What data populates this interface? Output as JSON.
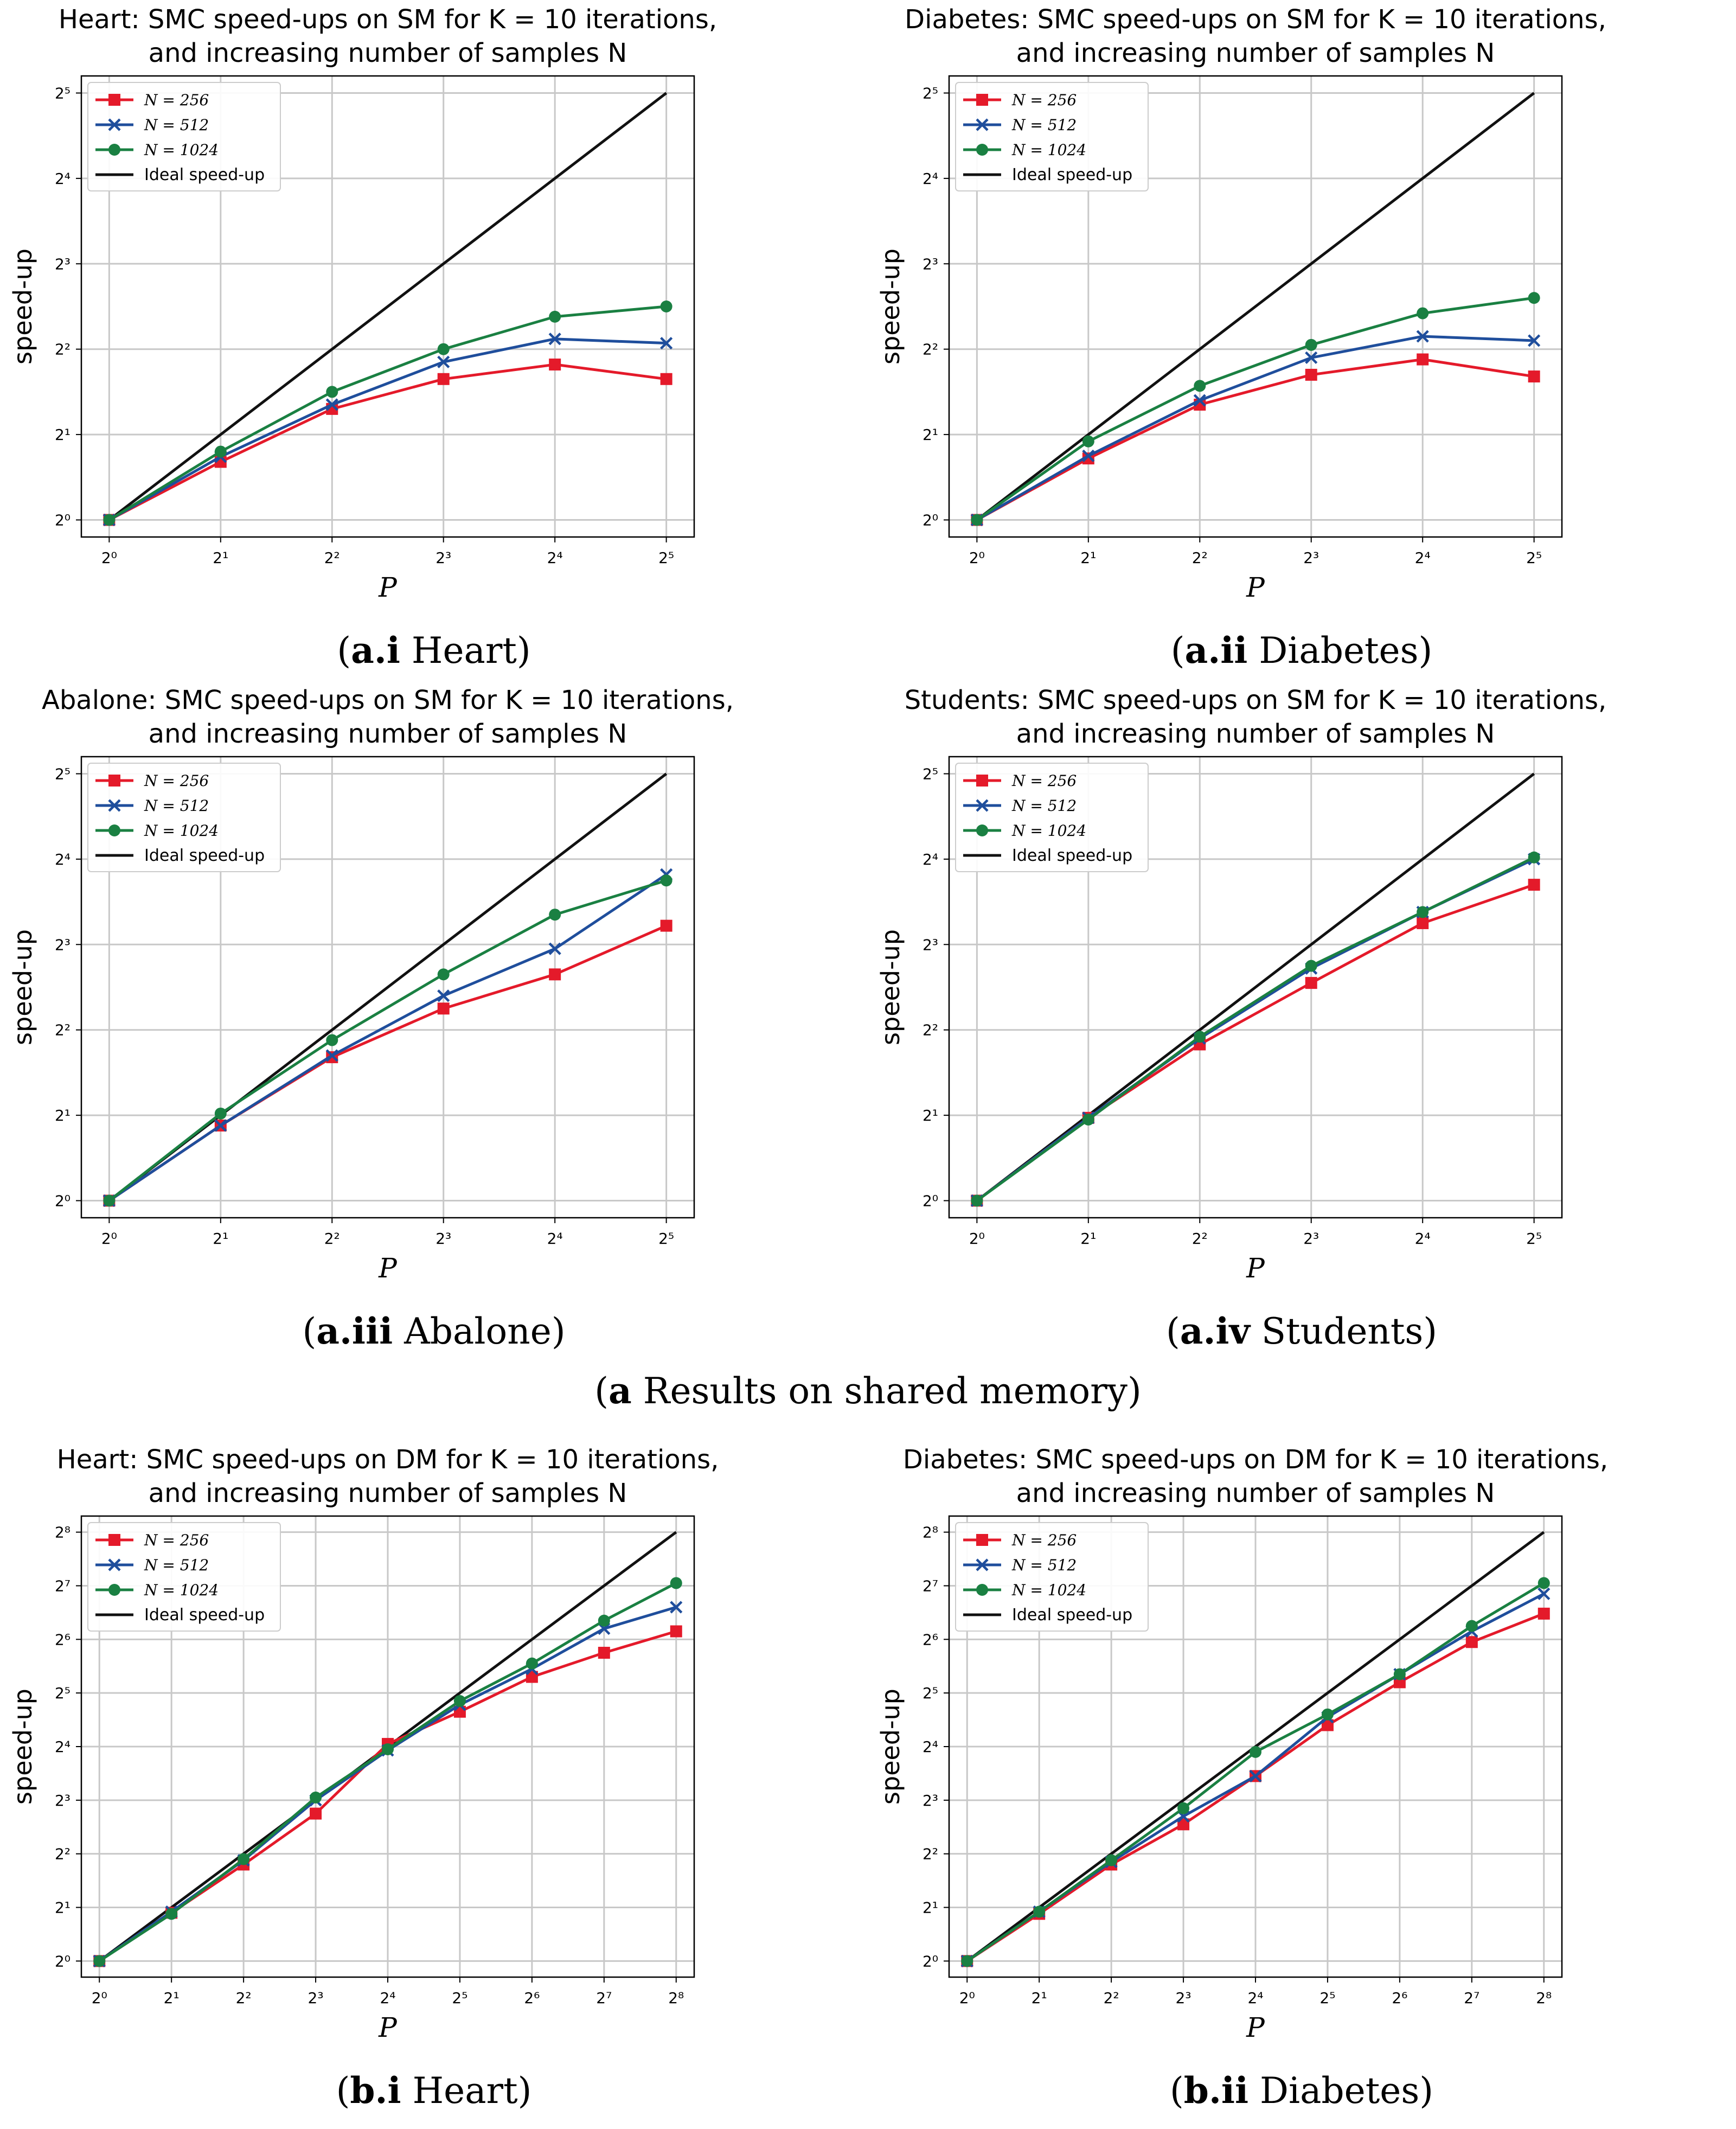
{
  "colors": {
    "n256": "#e41a2a",
    "n512": "#1f4e9c",
    "n1024": "#1a8042",
    "ideal": "#111111",
    "grid": "#c8c8c8"
  },
  "section_caption_a": {
    "label": "a",
    "text": " Results on shared memory"
  },
  "chart_data": [
    {
      "id": "ai",
      "type": "line",
      "title_line1": "Heart: SMC speed-ups on SM for K = 10 iterations,",
      "title_line2": "and increasing number of samples N",
      "xlabel": "P",
      "ylabel": "speed-up",
      "x_log2": [
        0,
        1,
        2,
        3,
        4,
        5
      ],
      "y_log2_range": [
        -0.2,
        5.2
      ],
      "x_tick_labels": [
        "2⁰",
        "2¹",
        "2²",
        "2³",
        "2⁴",
        "2⁵"
      ],
      "y_tick_labels": [
        "2⁰",
        "2¹",
        "2²",
        "2³",
        "2⁴",
        "2⁵"
      ],
      "legend": [
        "N = 256",
        "N = 512",
        "N = 1024",
        "Ideal speed-up"
      ],
      "series": [
        {
          "name": "N = 256",
          "marker": "square",
          "color": "n256",
          "y_log2": [
            0,
            0.68,
            1.3,
            1.65,
            1.82,
            1.65
          ]
        },
        {
          "name": "N = 512",
          "marker": "x",
          "color": "n512",
          "y_log2": [
            0,
            0.74,
            1.35,
            1.85,
            2.12,
            2.07
          ]
        },
        {
          "name": "N = 1024",
          "marker": "circle",
          "color": "n1024",
          "y_log2": [
            0,
            0.8,
            1.5,
            2.0,
            2.38,
            2.5
          ]
        },
        {
          "name": "Ideal speed-up",
          "marker": "none",
          "color": "ideal",
          "y_log2": [
            0,
            1,
            2,
            3,
            4,
            5
          ]
        }
      ],
      "caption_label": "a.i",
      "caption_text": " Heart"
    },
    {
      "id": "aii",
      "type": "line",
      "title_line1": "Diabetes: SMC speed-ups on SM for K = 10 iterations,",
      "title_line2": "and increasing number of samples N",
      "xlabel": "P",
      "ylabel": "speed-up",
      "x_log2": [
        0,
        1,
        2,
        3,
        4,
        5
      ],
      "y_log2_range": [
        -0.2,
        5.2
      ],
      "x_tick_labels": [
        "2⁰",
        "2¹",
        "2²",
        "2³",
        "2⁴",
        "2⁵"
      ],
      "y_tick_labels": [
        "2⁰",
        "2¹",
        "2²",
        "2³",
        "2⁴",
        "2⁵"
      ],
      "legend": [
        "N = 256",
        "N = 512",
        "N = 1024",
        "Ideal speed-up"
      ],
      "series": [
        {
          "name": "N = 256",
          "marker": "square",
          "color": "n256",
          "y_log2": [
            0,
            0.72,
            1.35,
            1.7,
            1.88,
            1.68
          ]
        },
        {
          "name": "N = 512",
          "marker": "x",
          "color": "n512",
          "y_log2": [
            0,
            0.75,
            1.4,
            1.9,
            2.15,
            2.1
          ]
        },
        {
          "name": "N = 1024",
          "marker": "circle",
          "color": "n1024",
          "y_log2": [
            0,
            0.92,
            1.57,
            2.05,
            2.42,
            2.6
          ]
        },
        {
          "name": "Ideal speed-up",
          "marker": "none",
          "color": "ideal",
          "y_log2": [
            0,
            1,
            2,
            3,
            4,
            5
          ]
        }
      ],
      "caption_label": "a.ii",
      "caption_text": " Diabetes"
    },
    {
      "id": "aiii",
      "type": "line",
      "title_line1": "Abalone: SMC speed-ups on SM for K = 10 iterations,",
      "title_line2": "and increasing number of samples N",
      "xlabel": "P",
      "ylabel": "speed-up",
      "x_log2": [
        0,
        1,
        2,
        3,
        4,
        5
      ],
      "y_log2_range": [
        -0.2,
        5.2
      ],
      "x_tick_labels": [
        "2⁰",
        "2¹",
        "2²",
        "2³",
        "2⁴",
        "2⁵"
      ],
      "y_tick_labels": [
        "2⁰",
        "2¹",
        "2²",
        "2³",
        "2⁴",
        "2⁵"
      ],
      "legend": [
        "N = 256",
        "N = 512",
        "N = 1024",
        "Ideal speed-up"
      ],
      "series": [
        {
          "name": "N = 256",
          "marker": "square",
          "color": "n256",
          "y_log2": [
            0,
            0.88,
            1.68,
            2.25,
            2.65,
            3.22
          ]
        },
        {
          "name": "N = 512",
          "marker": "x",
          "color": "n512",
          "y_log2": [
            0,
            0.88,
            1.7,
            2.4,
            2.95,
            3.82
          ]
        },
        {
          "name": "N = 1024",
          "marker": "circle",
          "color": "n1024",
          "y_log2": [
            0,
            1.02,
            1.88,
            2.65,
            3.35,
            3.75
          ]
        },
        {
          "name": "Ideal speed-up",
          "marker": "none",
          "color": "ideal",
          "y_log2": [
            0,
            1,
            2,
            3,
            4,
            5
          ]
        }
      ],
      "caption_label": "a.iii",
      "caption_text": " Abalone"
    },
    {
      "id": "aiv",
      "type": "line",
      "title_line1": "Students: SMC speed-ups on SM for K = 10 iterations,",
      "title_line2": "and increasing number of samples N",
      "xlabel": "P",
      "ylabel": "speed-up",
      "x_log2": [
        0,
        1,
        2,
        3,
        4,
        5
      ],
      "y_log2_range": [
        -0.2,
        5.2
      ],
      "x_tick_labels": [
        "2⁰",
        "2¹",
        "2²",
        "2³",
        "2⁴",
        "2⁵"
      ],
      "y_tick_labels": [
        "2⁰",
        "2¹",
        "2²",
        "2³",
        "2⁴",
        "2⁵"
      ],
      "legend": [
        "N = 256",
        "N = 512",
        "N = 1024",
        "Ideal speed-up"
      ],
      "series": [
        {
          "name": "N = 256",
          "marker": "square",
          "color": "n256",
          "y_log2": [
            0,
            0.97,
            1.83,
            2.55,
            3.25,
            3.7
          ]
        },
        {
          "name": "N = 512",
          "marker": "x",
          "color": "n512",
          "y_log2": [
            0,
            0.97,
            1.9,
            2.72,
            3.38,
            4.0
          ]
        },
        {
          "name": "N = 1024",
          "marker": "circle",
          "color": "n1024",
          "y_log2": [
            0,
            0.95,
            1.92,
            2.75,
            3.38,
            4.02
          ]
        },
        {
          "name": "Ideal speed-up",
          "marker": "none",
          "color": "ideal",
          "y_log2": [
            0,
            1,
            2,
            3,
            4,
            5
          ]
        }
      ],
      "caption_label": "a.iv",
      "caption_text": " Students"
    },
    {
      "id": "bi",
      "type": "line",
      "title_line1": "Heart: SMC speed-ups on DM for K = 10 iterations,",
      "title_line2": "and increasing number of samples N",
      "xlabel": "P",
      "ylabel": "speed-up",
      "x_log2": [
        0,
        1,
        2,
        3,
        4,
        5,
        6,
        7,
        8
      ],
      "y_log2_range": [
        -0.3,
        8.3
      ],
      "x_tick_labels": [
        "2⁰",
        "2¹",
        "2²",
        "2³",
        "2⁴",
        "2⁵",
        "2⁶",
        "2⁷",
        "2⁸"
      ],
      "y_tick_labels": [
        "2⁰",
        "2¹",
        "2²",
        "2³",
        "2⁴",
        "2⁵",
        "2⁶",
        "2⁷",
        "2⁸"
      ],
      "legend": [
        "N = 256",
        "N = 512",
        "N = 1024",
        "Ideal speed-up"
      ],
      "series": [
        {
          "name": "N = 256",
          "marker": "square",
          "color": "n256",
          "y_log2": [
            0,
            0.9,
            1.8,
            2.75,
            4.05,
            4.65,
            5.3,
            5.75,
            6.15
          ]
        },
        {
          "name": "N = 512",
          "marker": "x",
          "color": "n512",
          "y_log2": [
            0,
            0.92,
            1.88,
            3.0,
            3.93,
            4.78,
            5.45,
            6.2,
            6.6
          ]
        },
        {
          "name": "N = 1024",
          "marker": "circle",
          "color": "n1024",
          "y_log2": [
            0,
            0.88,
            1.9,
            3.05,
            3.95,
            4.85,
            5.55,
            6.35,
            7.05
          ]
        },
        {
          "name": "Ideal speed-up",
          "marker": "none",
          "color": "ideal",
          "y_log2": [
            0,
            1,
            2,
            3,
            4,
            5,
            6,
            7,
            8
          ]
        }
      ],
      "caption_label": "b.i",
      "caption_text": " Heart"
    },
    {
      "id": "bii",
      "type": "line",
      "title_line1": "Diabetes: SMC speed-ups on DM for K = 10 iterations,",
      "title_line2": "and increasing number of samples N",
      "xlabel": "P",
      "ylabel": "speed-up",
      "x_log2": [
        0,
        1,
        2,
        3,
        4,
        5,
        6,
        7,
        8
      ],
      "y_log2_range": [
        -0.3,
        8.3
      ],
      "x_tick_labels": [
        "2⁰",
        "2¹",
        "2²",
        "2³",
        "2⁴",
        "2⁵",
        "2⁶",
        "2⁷",
        "2⁸"
      ],
      "y_tick_labels": [
        "2⁰",
        "2¹",
        "2²",
        "2³",
        "2⁴",
        "2⁵",
        "2⁶",
        "2⁷",
        "2⁸"
      ],
      "legend": [
        "N = 256",
        "N = 512",
        "N = 1024",
        "Ideal speed-up"
      ],
      "series": [
        {
          "name": "N = 256",
          "marker": "square",
          "color": "n256",
          "y_log2": [
            0,
            0.88,
            1.8,
            2.55,
            3.45,
            4.4,
            5.2,
            5.95,
            6.48
          ]
        },
        {
          "name": "N = 512",
          "marker": "x",
          "color": "n512",
          "y_log2": [
            0,
            0.92,
            1.85,
            2.7,
            3.45,
            4.55,
            5.35,
            6.15,
            6.85
          ]
        },
        {
          "name": "N = 1024",
          "marker": "circle",
          "color": "n1024",
          "y_log2": [
            0,
            0.92,
            1.88,
            2.85,
            3.9,
            4.6,
            5.35,
            6.25,
            7.05
          ]
        },
        {
          "name": "Ideal speed-up",
          "marker": "none",
          "color": "ideal",
          "y_log2": [
            0,
            1,
            2,
            3,
            4,
            5,
            6,
            7,
            8
          ]
        }
      ],
      "caption_label": "b.ii",
      "caption_text": " Diabetes"
    }
  ]
}
